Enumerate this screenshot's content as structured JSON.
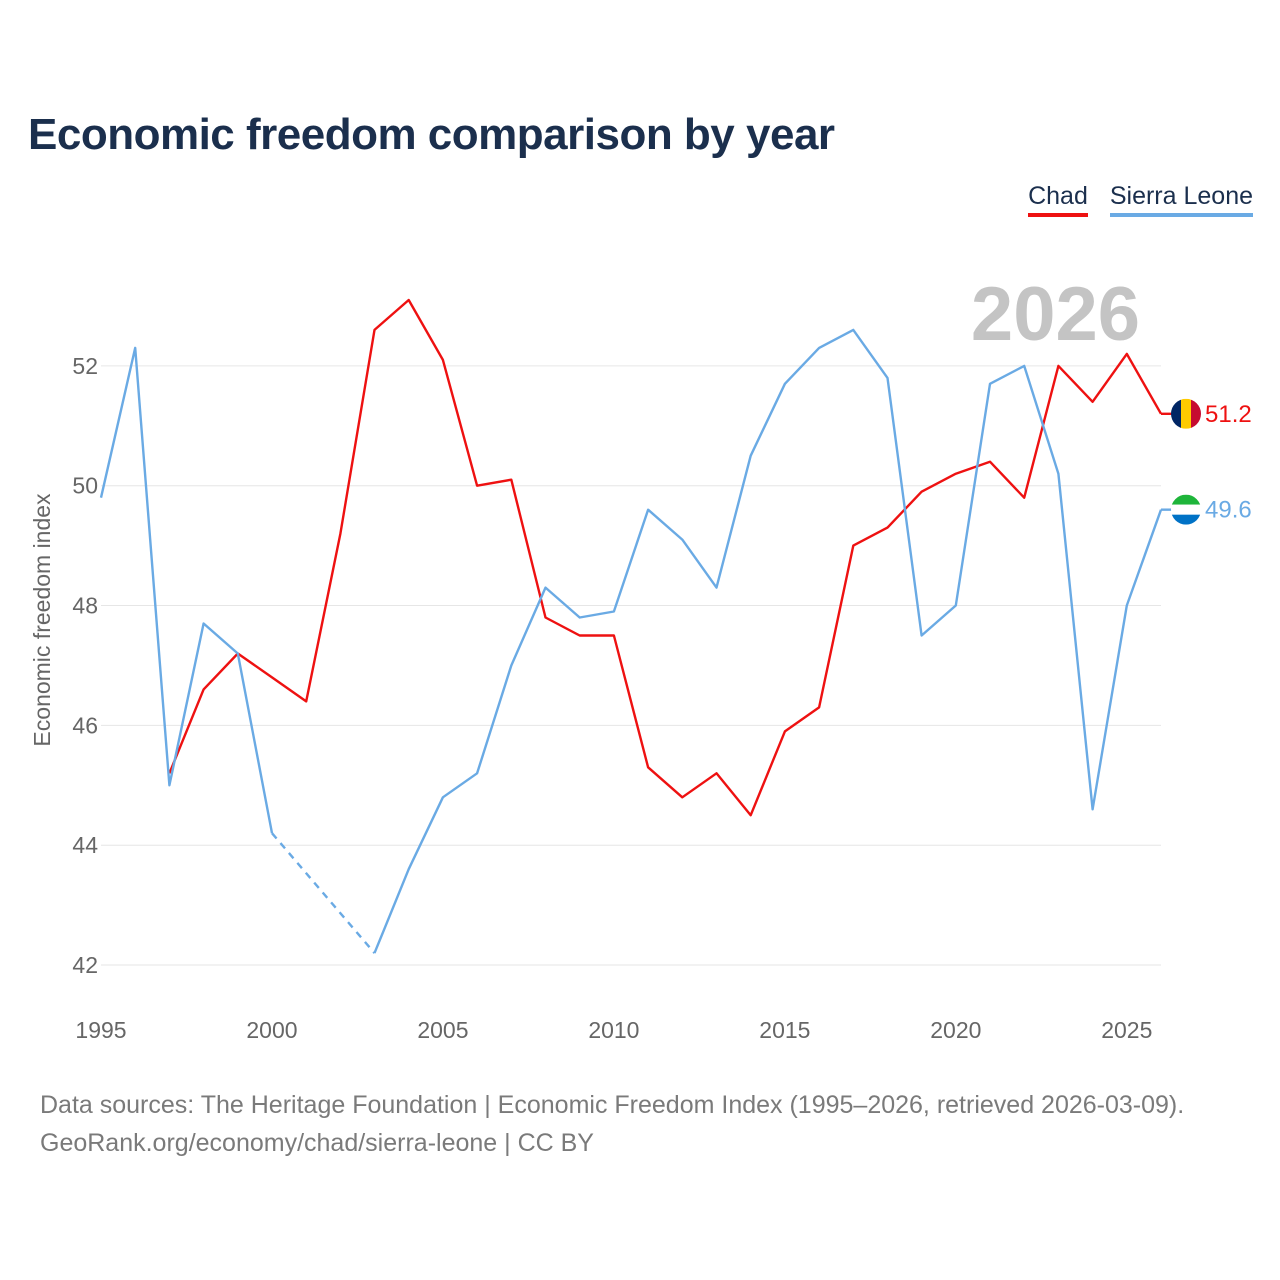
{
  "title": "Economic freedom comparison by year",
  "legend": {
    "chad": "Chad",
    "sierra_leone": "Sierra Leone"
  },
  "footer": {
    "line1": "Data sources: The Heritage Foundation | Economic Freedom Index (1995–2026, retrieved 2026-03-09).",
    "line2": "GeoRank.org/economy/chad/sierra-leone | CC BY"
  },
  "colors": {
    "chad": "#ee1111",
    "sierra_leone": "#6aaae4",
    "title": "#1b2f4d",
    "grid": "#e6e6e6",
    "axis_text": "#666666",
    "year_watermark": "#c4c4c4"
  },
  "chart_data": {
    "type": "line",
    "title": "Economic freedom comparison by year",
    "xlabel": "",
    "ylabel": "Economic freedom index",
    "xlim": [
      1995,
      2026
    ],
    "ylim": [
      41.5,
      53.6
    ],
    "xticks": [
      1995,
      2000,
      2005,
      2010,
      2015,
      2020,
      2025
    ],
    "xtick_labels": [
      "1995",
      "2000",
      "2005",
      "2010",
      "2015",
      "2020",
      "2025"
    ],
    "yticks": [
      42,
      44,
      46,
      48,
      50,
      52
    ],
    "ytick_labels": [
      "42",
      "44",
      "46",
      "48",
      "50",
      "52"
    ],
    "current_year": "2026",
    "series": [
      {
        "name": "Chad",
        "color": "#ee1111",
        "x": [
          1997,
          1998,
          1999,
          2000,
          2001,
          2002,
          2003,
          2004,
          2005,
          2006,
          2007,
          2008,
          2009,
          2010,
          2011,
          2012,
          2013,
          2014,
          2015,
          2016,
          2017,
          2018,
          2019,
          2020,
          2021,
          2022,
          2023,
          2024,
          2025,
          2026
        ],
        "values": [
          45.2,
          46.6,
          47.2,
          46.8,
          46.4,
          49.2,
          52.6,
          53.1,
          52.1,
          50.0,
          50.1,
          47.8,
          47.5,
          47.5,
          45.3,
          44.8,
          45.2,
          44.5,
          45.9,
          46.3,
          49.0,
          49.3,
          49.9,
          50.2,
          50.4,
          49.8,
          52.0,
          51.4,
          52.2,
          51.2
        ],
        "end_label": "51.2"
      },
      {
        "name": "Sierra Leone",
        "color": "#6aaae4",
        "x": [
          1995,
          1996,
          1997,
          1998,
          1999,
          2000,
          2003,
          2004,
          2005,
          2006,
          2007,
          2008,
          2009,
          2010,
          2011,
          2012,
          2013,
          2014,
          2015,
          2016,
          2017,
          2018,
          2019,
          2020,
          2021,
          2022,
          2023,
          2024,
          2025,
          2026
        ],
        "values": [
          49.8,
          52.3,
          45.0,
          47.7,
          47.2,
          44.2,
          42.2,
          43.6,
          44.8,
          45.2,
          47.0,
          48.3,
          47.8,
          47.9,
          49.6,
          49.1,
          48.3,
          50.5,
          51.7,
          52.3,
          52.6,
          51.8,
          47.5,
          48.0,
          51.7,
          52.0,
          50.2,
          44.6,
          48.0,
          49.6
        ],
        "gap": {
          "from": 2000,
          "to": 2003,
          "style": "dashed"
        },
        "end_label": "49.6"
      }
    ]
  }
}
